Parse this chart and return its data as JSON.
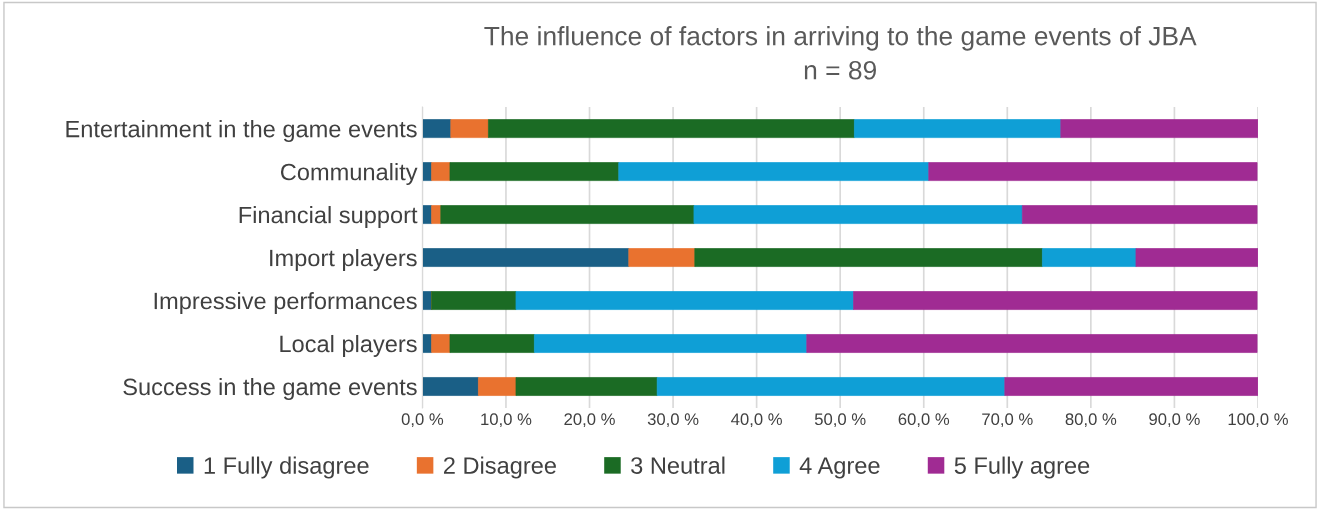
{
  "chart_data": {
    "type": "bar",
    "orientation": "horizontal",
    "stacked": true,
    "title": "The influence of factors in arriving to the game events of JBA\nn = 89",
    "categories": [
      "Entertainment in the game events",
      "Communality",
      "Financial support",
      "Import players",
      "Impressive performances",
      "Local players",
      "Success in the game events"
    ],
    "series": [
      {
        "name": "1 Fully disagree",
        "color": "#1a5f86",
        "values": [
          3.4,
          1.1,
          1.1,
          24.7,
          1.1,
          1.1,
          6.7
        ]
      },
      {
        "name": "2 Disagree",
        "color": "#e9722f",
        "values": [
          4.5,
          2.2,
          1.1,
          7.9,
          0,
          2.2,
          4.5
        ]
      },
      {
        "name": "3 Neutral",
        "color": "#1b6b24",
        "values": [
          43.8,
          20.2,
          30.3,
          41.6,
          10.1,
          10.1,
          16.9
        ]
      },
      {
        "name": "4 Agree",
        "color": "#0f9fd6",
        "values": [
          24.7,
          37.1,
          39.3,
          11.2,
          40.4,
          32.6,
          41.6
        ]
      },
      {
        "name": "5 Fully agree",
        "color": "#a02b93",
        "values": [
          23.6,
          39.3,
          28.1,
          14.6,
          48.3,
          53.9,
          30.3
        ]
      }
    ],
    "xlim": [
      0,
      100
    ],
    "xticks": [
      {
        "value": 0,
        "label": "0,0 %"
      },
      {
        "value": 10,
        "label": "10,0 %"
      },
      {
        "value": 20,
        "label": "20,0 %"
      },
      {
        "value": 30,
        "label": "30,0 %"
      },
      {
        "value": 40,
        "label": "40,0 %"
      },
      {
        "value": 50,
        "label": "50,0 %"
      },
      {
        "value": 60,
        "label": "60,0 %"
      },
      {
        "value": 70,
        "label": "70,0 %"
      },
      {
        "value": 80,
        "label": "80,0 %"
      },
      {
        "value": 90,
        "label": "90,0 %"
      },
      {
        "value": 100,
        "label": "100,0 %"
      }
    ],
    "grid": "x",
    "legend": "bottom"
  }
}
